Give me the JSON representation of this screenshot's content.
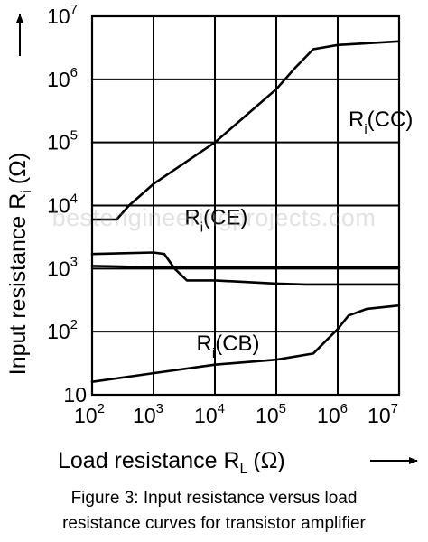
{
  "chart_data": {
    "type": "line",
    "xlabel": "Load resistance R",
    "xlabel_sub": "L",
    "xlabel_unit": "(Ω)",
    "ylabel": "Input resistance R",
    "ylabel_sub": "i",
    "ylabel_unit": "(Ω)",
    "x_scale": "log",
    "y_scale": "log",
    "xlim": [
      100,
      10000000
    ],
    "ylim": [
      10,
      10000000
    ],
    "grid": true,
    "x_ticks": [
      {
        "value": 100,
        "base": "10",
        "exp": "2"
      },
      {
        "value": 1000,
        "base": "10",
        "exp": "3"
      },
      {
        "value": 10000,
        "base": "10",
        "exp": "4"
      },
      {
        "value": 100000,
        "base": "10",
        "exp": "5"
      },
      {
        "value": 1000000,
        "base": "10",
        "exp": "6"
      },
      {
        "value": 10000000,
        "base": "10",
        "exp": "7"
      }
    ],
    "y_ticks": [
      {
        "value": 10,
        "base": "10",
        "exp": ""
      },
      {
        "value": 100,
        "base": "10",
        "exp": "2"
      },
      {
        "value": 1000,
        "base": "10",
        "exp": "3"
      },
      {
        "value": 10000,
        "base": "10",
        "exp": "4"
      },
      {
        "value": 100000,
        "base": "10",
        "exp": "5"
      },
      {
        "value": 1000000,
        "base": "10",
        "exp": "6"
      },
      {
        "value": 10000000,
        "base": "10",
        "exp": "7"
      }
    ],
    "series": [
      {
        "name": "R(CC)",
        "label_main": "R",
        "label_sub": "i",
        "label_tail": "(CC)",
        "label_anchor": [
          1500000,
          180000
        ],
        "points": [
          [
            100,
            6000
          ],
          [
            250,
            6000
          ],
          [
            400,
            10000
          ],
          [
            1000,
            22000
          ],
          [
            10000,
            100000
          ],
          [
            100000,
            700000
          ],
          [
            200000,
            1500000
          ],
          [
            400000,
            3000000
          ],
          [
            1000000,
            3500000
          ],
          [
            10000000,
            4000000
          ]
        ]
      },
      {
        "name": "R(CE)",
        "label_main": "R",
        "label_sub": "i",
        "label_tail": "(CE)",
        "label_anchor": [
          3200,
          5000
        ],
        "points": [
          [
            100,
            1700
          ],
          [
            1000,
            1800
          ],
          [
            1500,
            1700
          ],
          [
            2200,
            1000
          ],
          [
            3500,
            650
          ],
          [
            10000,
            650
          ],
          [
            100000,
            580
          ],
          [
            300000,
            560
          ],
          [
            1000000,
            560
          ],
          [
            10000000,
            560
          ]
        ]
      },
      {
        "name": "R(CE) baseline",
        "points": [
          [
            100,
            1100
          ],
          [
            1000,
            1050
          ],
          [
            10000,
            1050
          ],
          [
            100000,
            1050
          ],
          [
            1000000,
            1050
          ],
          [
            10000000,
            1050
          ]
        ]
      },
      {
        "name": "R(CB)",
        "label_main": "R",
        "label_sub": "i",
        "label_tail": "(CB)",
        "label_anchor": [
          5000,
          50
        ],
        "points": [
          [
            100,
            16
          ],
          [
            1000,
            22
          ],
          [
            10000,
            30
          ],
          [
            100000,
            36
          ],
          [
            400000,
            45
          ],
          [
            1000000,
            110
          ],
          [
            1500000,
            180
          ],
          [
            3000000,
            230
          ],
          [
            10000000,
            260
          ]
        ]
      }
    ]
  },
  "caption": {
    "line1": "Figure 3: Input resistance versus load",
    "line2": "resistance curves for transistor amplifier"
  },
  "watermark": "bestengineeringprojects.com"
}
